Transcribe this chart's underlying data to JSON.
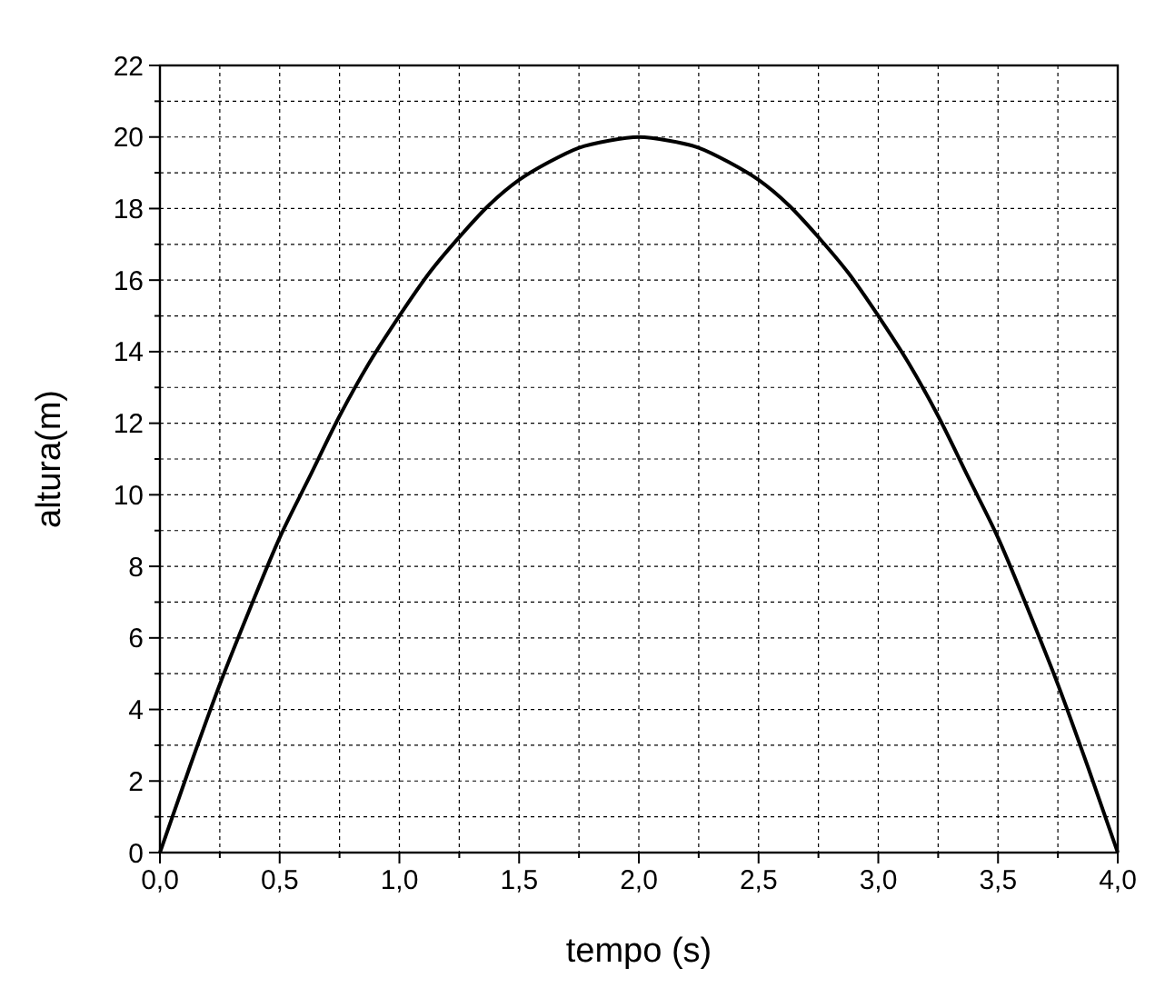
{
  "chart_data": {
    "type": "line",
    "xlabel": "tempo (s)",
    "ylabel": "altura(m)",
    "x": [
      0,
      0.125,
      0.25,
      0.375,
      0.5,
      0.625,
      0.75,
      0.875,
      1,
      1.125,
      1.25,
      1.375,
      1.5,
      1.625,
      1.75,
      1.875,
      2,
      2.125,
      2.25,
      2.375,
      2.5,
      2.625,
      2.75,
      2.875,
      3,
      3.125,
      3.25,
      3.375,
      3.5,
      3.625,
      3.75,
      3.875,
      4
    ],
    "series": [
      {
        "color": "#000000",
        "values": [
          0,
          2.4,
          4.7,
          6.8,
          8.8,
          10.5,
          12.2,
          13.7,
          15,
          16.2,
          17.2,
          18.1,
          18.8,
          19.3,
          19.7,
          19.9,
          20,
          19.9,
          19.7,
          19.3,
          18.8,
          18.1,
          17.2,
          16.2,
          15,
          13.7,
          12.2,
          10.5,
          8.8,
          6.8,
          4.7,
          2.4,
          0
        ]
      }
    ],
    "xlim": [
      0,
      4
    ],
    "xticks": [
      {
        "value": 0,
        "label": "0,0"
      },
      {
        "value": 0.25,
        "label": null
      },
      {
        "value": 0.5,
        "label": "0,5"
      },
      {
        "value": 0.75,
        "label": null
      },
      {
        "value": 1,
        "label": "1,0"
      },
      {
        "value": 1.25,
        "label": null
      },
      {
        "value": 1.5,
        "label": "1,5"
      },
      {
        "value": 1.75,
        "label": null
      },
      {
        "value": 2,
        "label": "2,0"
      },
      {
        "value": 2.25,
        "label": null
      },
      {
        "value": 2.5,
        "label": "2,5"
      },
      {
        "value": 2.75,
        "label": null
      },
      {
        "value": 3,
        "label": "3,0"
      },
      {
        "value": 3.25,
        "label": null
      },
      {
        "value": 3.5,
        "label": "3,5"
      },
      {
        "value": 3.75,
        "label": null
      },
      {
        "value": 4,
        "label": "4,0"
      }
    ],
    "ylim": [
      0,
      22
    ],
    "yticks": [
      0,
      {
        "value": 1,
        "label": null
      },
      2,
      {
        "value": 3,
        "label": null
      },
      4,
      {
        "value": 5,
        "label": null
      },
      6,
      {
        "value": 7,
        "label": null
      },
      8,
      {
        "value": 9,
        "label": null
      },
      10,
      {
        "value": 11,
        "label": null
      },
      12,
      {
        "value": 13,
        "label": null
      },
      14,
      {
        "value": 15,
        "label": null
      },
      16,
      {
        "value": 17,
        "label": null
      },
      18,
      {
        "value": 19,
        "label": null
      },
      20,
      {
        "value": 21,
        "label": null
      },
      22
    ],
    "grid": true,
    "marker": "none",
    "line_style": "solid"
  }
}
